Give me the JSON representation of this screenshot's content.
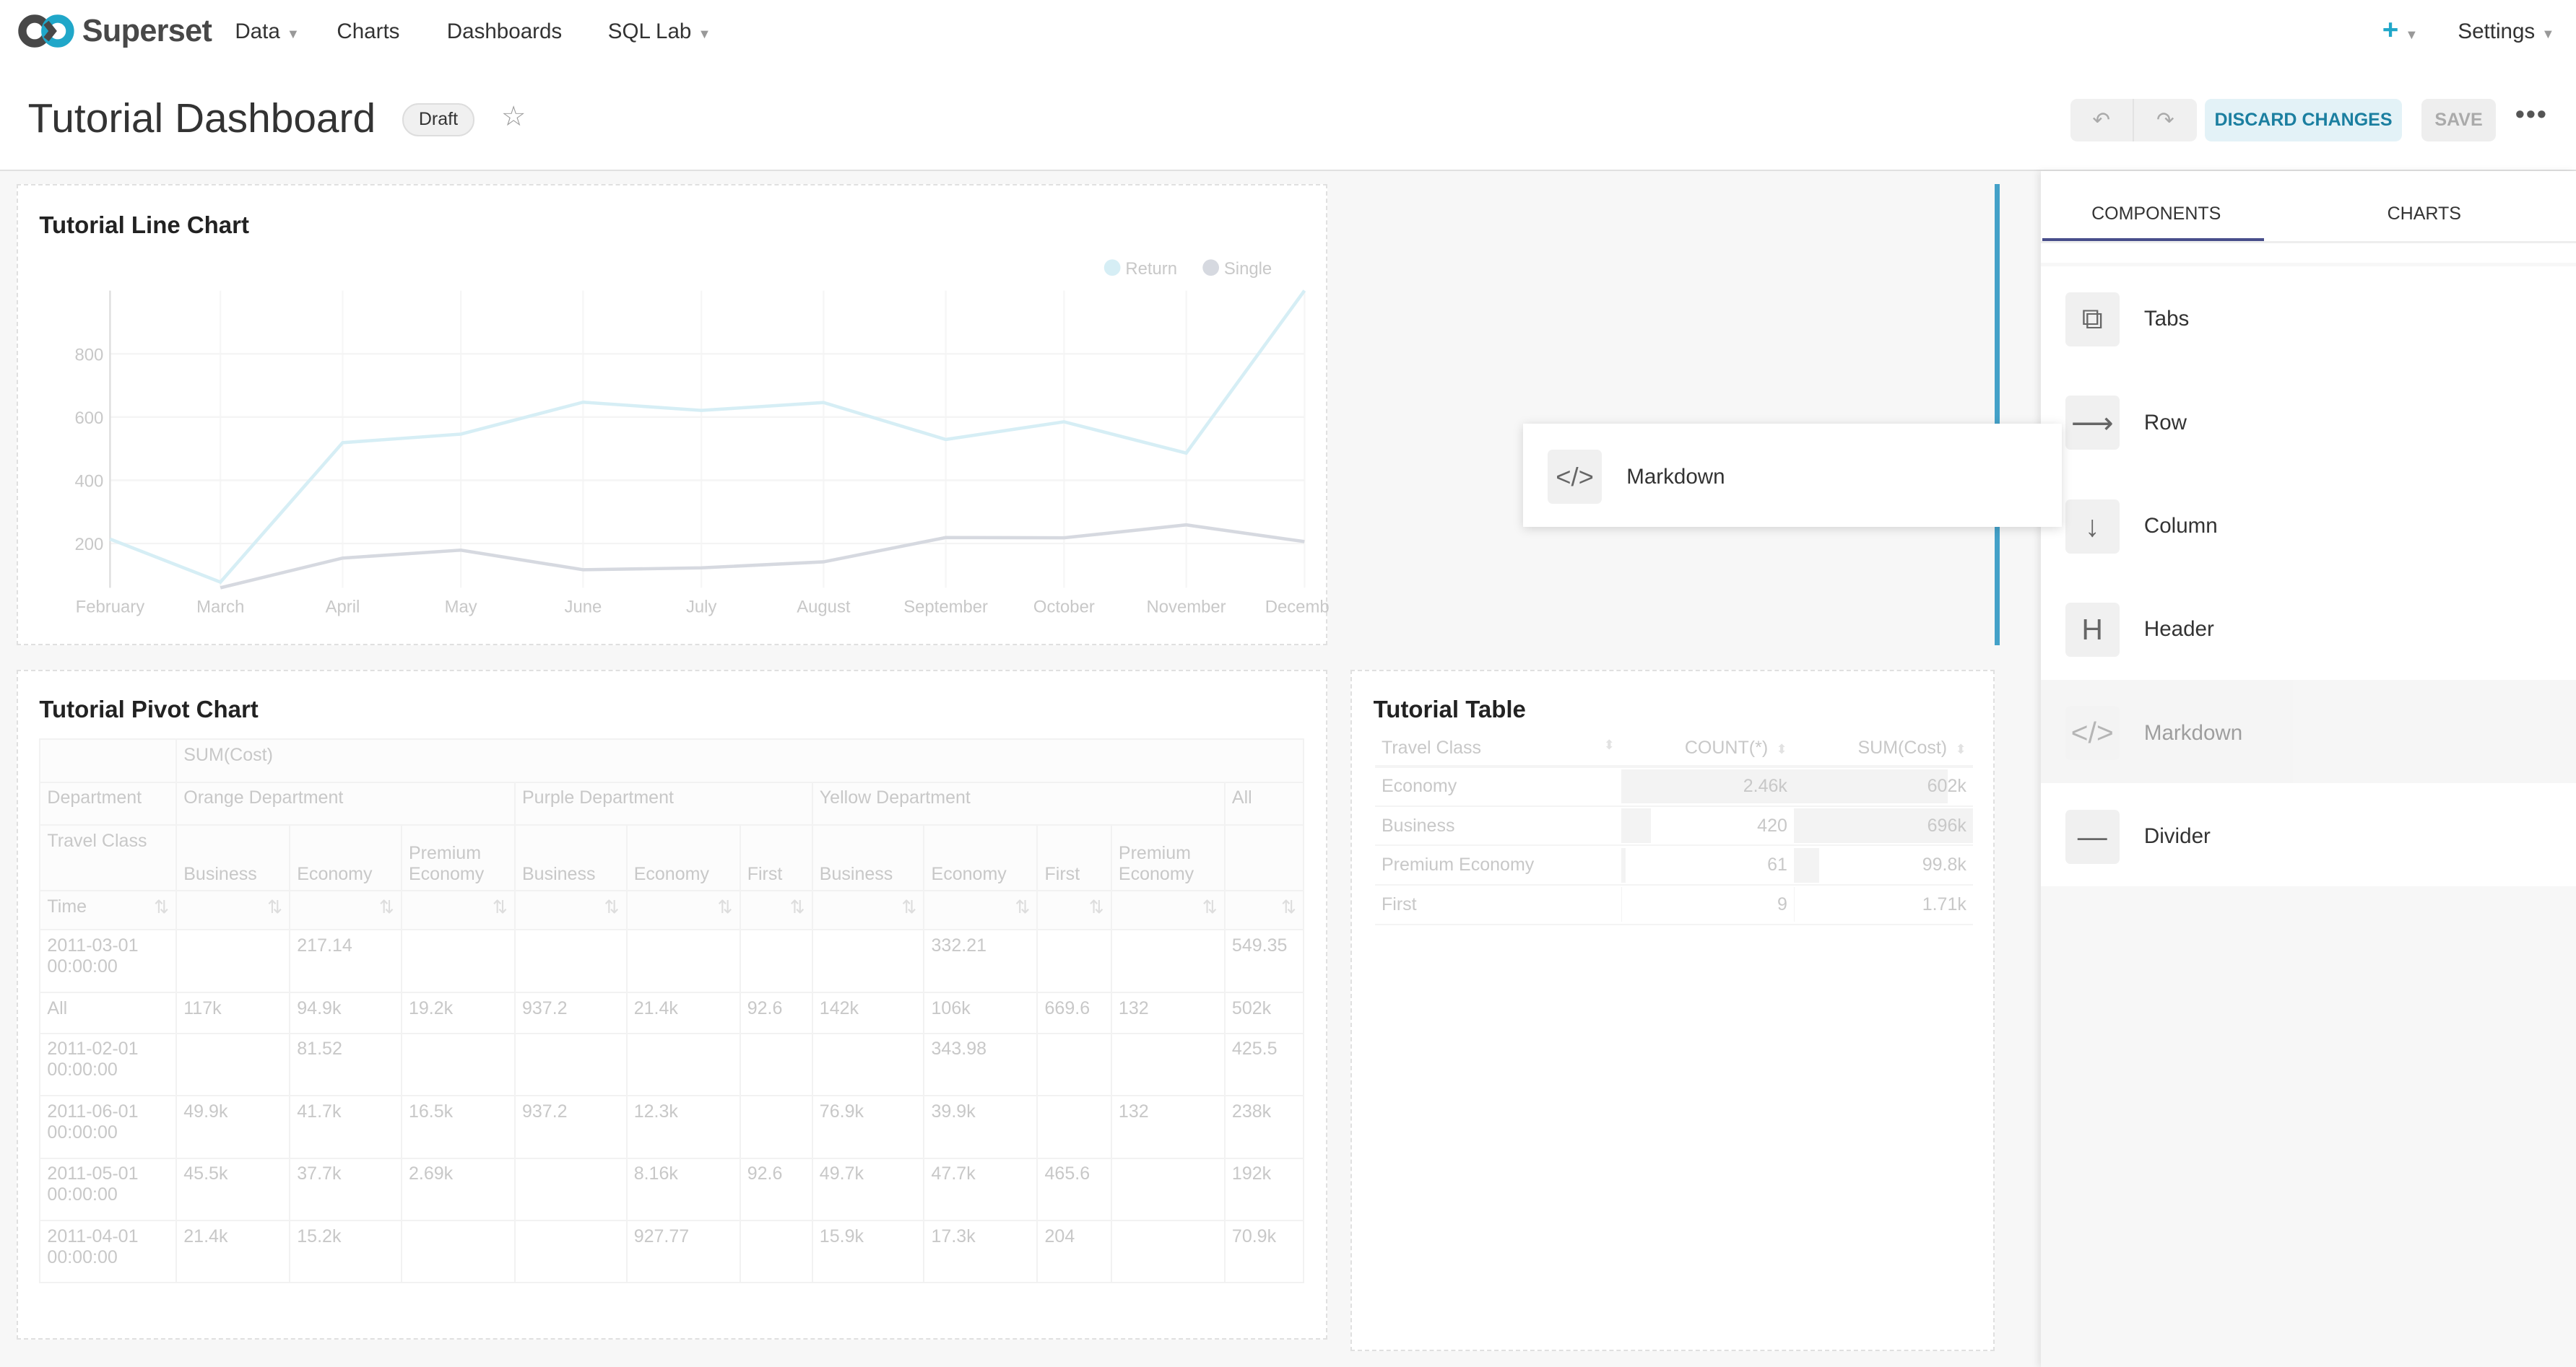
{
  "nav": {
    "brand": "Superset",
    "menus": [
      {
        "label": "Data",
        "dropdown": true
      },
      {
        "label": "Charts",
        "dropdown": false
      },
      {
        "label": "Dashboards",
        "dropdown": false
      },
      {
        "label": "SQL Lab",
        "dropdown": true
      }
    ],
    "plus_icon": "plus-icon",
    "settings": "Settings"
  },
  "header": {
    "title": "Tutorial Dashboard",
    "badge": "Draft",
    "undo_icon": "undo-icon",
    "redo_icon": "redo-icon",
    "discard": "DISCARD CHANGES",
    "save": "SAVE",
    "more": "•••"
  },
  "colors": {
    "accent": "#20a7c9",
    "drop_indicator": "#44a1c8",
    "return": "#d6eef5",
    "single": "#d6d9e0"
  },
  "line_chart": {
    "title": "Tutorial Line Chart"
  },
  "chart_data": {
    "type": "line",
    "title": "",
    "xlabel": "",
    "ylabel": "",
    "legend": "top-right",
    "grid": true,
    "categories": [
      "February",
      "March",
      "April",
      "May",
      "June",
      "July",
      "August",
      "September",
      "October",
      "November",
      "December"
    ],
    "yticks": [
      200,
      400,
      600,
      800
    ],
    "ylim": [
      60,
      1000
    ],
    "series": [
      {
        "name": "Return",
        "values": [
          214,
          78,
          519,
          546,
          647,
          621,
          646,
          529,
          585,
          486,
          1000
        ]
      },
      {
        "name": "Single",
        "values": [
          null,
          60,
          154,
          179,
          117,
          123,
          142,
          219,
          218,
          259,
          206
        ]
      }
    ]
  },
  "pivot": {
    "title": "Tutorial Pivot Chart",
    "metric": "SUM(Cost)",
    "dept_label": "Department",
    "departments": [
      {
        "name": "Orange Department",
        "span": 3
      },
      {
        "name": "Purple Department",
        "span": 3
      },
      {
        "name": "Yellow Department",
        "span": 4
      },
      {
        "name": "All",
        "span": 1
      }
    ],
    "class_label": "Travel Class",
    "classes": [
      "Business",
      "Economy",
      "Premium Economy",
      "Business",
      "Economy",
      "First",
      "Business",
      "Economy",
      "First",
      "Premium Economy",
      ""
    ],
    "time_label": "Time",
    "rows": [
      {
        "time": "2011-03-01 00:00:00",
        "cells": [
          "",
          "217.14",
          "",
          "",
          "",
          "",
          "",
          "332.21",
          "",
          "",
          "549.35"
        ]
      },
      {
        "time": "All",
        "cells": [
          "117k",
          "94.9k",
          "19.2k",
          "937.2",
          "21.4k",
          "92.6",
          "142k",
          "106k",
          "669.6",
          "132",
          "502k"
        ]
      },
      {
        "time": "2011-02-01 00:00:00",
        "cells": [
          "",
          "81.52",
          "",
          "",
          "",
          "",
          "",
          "343.98",
          "",
          "",
          "425.5"
        ]
      },
      {
        "time": "2011-06-01 00:00:00",
        "cells": [
          "49.9k",
          "41.7k",
          "16.5k",
          "937.2",
          "12.3k",
          "",
          "76.9k",
          "39.9k",
          "",
          "132",
          "238k"
        ]
      },
      {
        "time": "2011-05-01 00:00:00",
        "cells": [
          "45.5k",
          "37.7k",
          "2.69k",
          "",
          "8.16k",
          "92.6",
          "49.7k",
          "47.7k",
          "465.6",
          "",
          "192k"
        ]
      },
      {
        "time": "2011-04-01 00:00:00",
        "cells": [
          "21.4k",
          "15.2k",
          "",
          "",
          "927.77",
          "",
          "15.9k",
          "17.3k",
          "204",
          "",
          "70.9k"
        ]
      }
    ]
  },
  "table": {
    "title": "Tutorial Table",
    "columns": [
      "Travel Class",
      "COUNT(*)",
      "SUM(Cost)"
    ],
    "rows": [
      {
        "cls": "Economy",
        "count": "2.46k",
        "count_bar_pct": 100,
        "sum": "602k",
        "sum_bar_pct": 86
      },
      {
        "cls": "Business",
        "count": "420",
        "count_bar_pct": 17,
        "sum": "696k",
        "sum_bar_pct": 100
      },
      {
        "cls": "Premium Economy",
        "count": "61",
        "count_bar_pct": 2.5,
        "sum": "99.8k",
        "sum_bar_pct": 14
      },
      {
        "cls": "First",
        "count": "9",
        "count_bar_pct": 0.4,
        "sum": "1.71k",
        "sum_bar_pct": 0.2
      }
    ]
  },
  "ghost": {
    "label": "Markdown",
    "icon": "code-icon"
  },
  "sidebar": {
    "tabs": [
      "COMPONENTS",
      "CHARTS"
    ],
    "active_tab": "COMPONENTS",
    "items": [
      {
        "label": "Tabs",
        "icon": "tabs-icon"
      },
      {
        "label": "Row",
        "icon": "arrow-right-icon"
      },
      {
        "label": "Column",
        "icon": "arrow-down-icon"
      },
      {
        "label": "Header",
        "icon": "header-icon"
      },
      {
        "label": "Markdown",
        "icon": "code-icon",
        "dragging": true
      },
      {
        "label": "Divider",
        "icon": "divider-icon"
      }
    ]
  }
}
